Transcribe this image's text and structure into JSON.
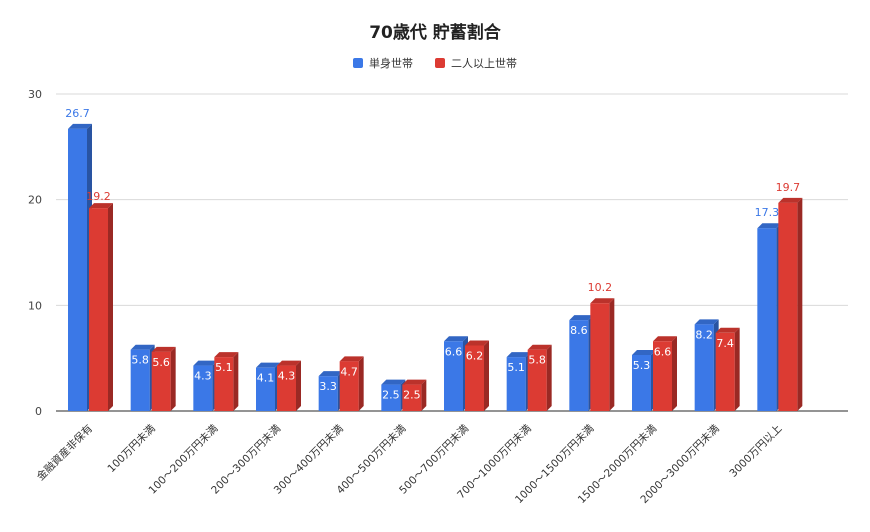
{
  "chart_data": {
    "type": "bar",
    "title": "70歳代 貯蓄割合",
    "categories": [
      "金融資産非保有",
      "100万円未満",
      "100～200万円未満",
      "200～300万円未満",
      "300～400万円未満",
      "400～500万円未満",
      "500～700万円未満",
      "700～1000万円未満",
      "1000～1500万円未満",
      "1500～2000万円未満",
      "2000～3000万円未満",
      "3000万円以上"
    ],
    "series": [
      {
        "name": "単身世帯",
        "color": "#3b78e7",
        "values": [
          26.7,
          5.8,
          4.3,
          4.1,
          3.3,
          2.5,
          6.6,
          5.1,
          8.6,
          5.3,
          8.2,
          17.3
        ]
      },
      {
        "name": "二人以上世帯",
        "color": "#dc3b33",
        "values": [
          19.2,
          5.6,
          5.1,
          4.3,
          4.7,
          2.5,
          6.2,
          5.8,
          10.2,
          6.6,
          7.4,
          19.7
        ]
      }
    ],
    "ylim": [
      0,
      30
    ],
    "yticks": [
      "0",
      "10",
      "20",
      "30"
    ],
    "legend_position": "top-center",
    "grid": true
  }
}
